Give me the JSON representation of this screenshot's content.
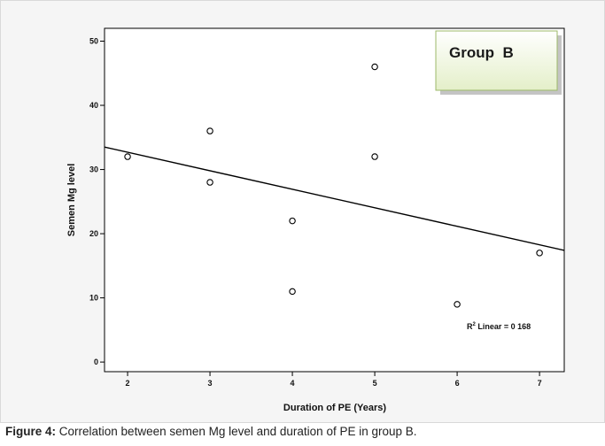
{
  "chart_data": {
    "type": "scatter",
    "title": "",
    "xlabel": "Duration of PE (Years)",
    "ylabel": "Semen Mg level",
    "x_ticks": [
      2,
      3,
      4,
      5,
      6,
      7
    ],
    "y_ticks": [
      0,
      10,
      20,
      30,
      40,
      50
    ],
    "xlim": [
      1.72,
      7.3
    ],
    "ylim": [
      -1.5,
      52
    ],
    "grid": false,
    "points": [
      {
        "x": 2,
        "y": 32
      },
      {
        "x": 3,
        "y": 36
      },
      {
        "x": 3,
        "y": 28
      },
      {
        "x": 4,
        "y": 22
      },
      {
        "x": 4,
        "y": 11
      },
      {
        "x": 5,
        "y": 46
      },
      {
        "x": 5,
        "y": 32
      },
      {
        "x": 6,
        "y": 9
      },
      {
        "x": 7,
        "y": 17
      }
    ],
    "fit_line": {
      "type": "linear",
      "x": [
        1.72,
        7.3
      ],
      "y": [
        33.5,
        17.4
      ],
      "label_prefix": "R",
      "label_sup": "2",
      "label_suffix": " Linear = 0 168"
    },
    "annotation_box": "Group  B"
  },
  "caption": {
    "prefix": "Figure 4:",
    "text": " Correlation between semen Mg level and duration of PE in group B."
  }
}
